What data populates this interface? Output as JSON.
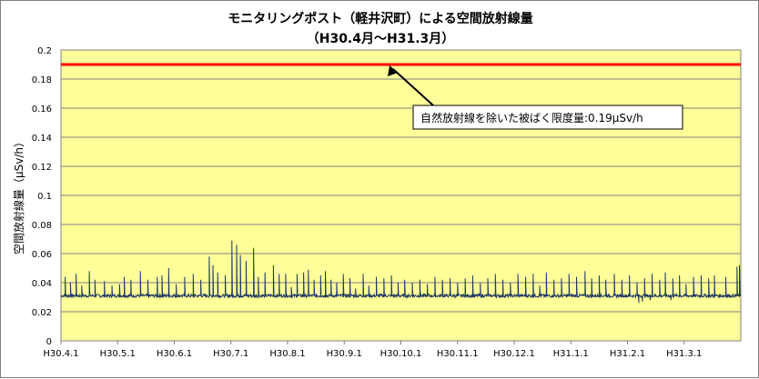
{
  "chart_data": {
    "type": "line",
    "title": "モニタリングポスト（軽井沢町）による空間放射線量",
    "subtitle": "（H30.4月～H31.3月）",
    "ylabel": "空間放射線量（μSv/h）",
    "xlabel": "",
    "ylim": [
      0,
      0.2
    ],
    "yticks": [
      "0",
      "0.02",
      "0.04",
      "0.06",
      "0.08",
      "0.1",
      "0.12",
      "0.14",
      "0.16",
      "0.18",
      "0.2"
    ],
    "xticks": [
      "H30.4.1",
      "H30.5.1",
      "H30.6.1",
      "H30.7.1",
      "H30.8.1",
      "H30.9.1",
      "H30.10.1",
      "H30.11.1",
      "H30.12.1",
      "H31.1.1",
      "H31.2.1",
      "H31.3.1"
    ],
    "reference_line": {
      "value": 0.19,
      "color": "#ff0000"
    },
    "annotation": "自然放射線を除いた被ばく限度量:0.19μSv/h",
    "series_color": "#1f3864",
    "plot_background": "#ffff99",
    "grid": true,
    "baseline": 0.031,
    "spikes": [
      [
        0.22,
        0.044
      ],
      [
        0.5,
        0.04
      ],
      [
        0.8,
        0.046
      ],
      [
        1.1,
        0.038
      ],
      [
        1.5,
        0.048
      ],
      [
        1.8,
        0.042
      ],
      [
        2.3,
        0.041
      ],
      [
        2.7,
        0.038
      ],
      [
        3.1,
        0.039
      ],
      [
        3.35,
        0.044
      ],
      [
        3.7,
        0.042
      ],
      [
        4.2,
        0.048
      ],
      [
        4.6,
        0.042
      ],
      [
        5.1,
        0.044
      ],
      [
        5.35,
        0.045
      ],
      [
        5.7,
        0.05
      ],
      [
        6.1,
        0.039
      ],
      [
        6.55,
        0.044
      ],
      [
        7.0,
        0.046
      ],
      [
        7.4,
        0.042
      ],
      [
        7.85,
        0.058
      ],
      [
        8.05,
        0.052
      ],
      [
        8.3,
        0.047
      ],
      [
        8.7,
        0.045
      ],
      [
        9.05,
        0.069
      ],
      [
        9.3,
        0.066
      ],
      [
        9.5,
        0.059
      ],
      [
        9.8,
        0.055
      ],
      [
        10.2,
        0.064
      ],
      [
        10.45,
        0.044
      ],
      [
        10.8,
        0.047
      ],
      [
        11.25,
        0.052
      ],
      [
        11.55,
        0.046
      ],
      [
        11.9,
        0.046
      ],
      [
        12.2,
        0.037
      ],
      [
        12.5,
        0.046
      ],
      [
        12.85,
        0.047
      ],
      [
        13.1,
        0.049
      ],
      [
        13.4,
        0.042
      ],
      [
        13.75,
        0.045
      ],
      [
        14.0,
        0.048
      ],
      [
        14.3,
        0.042
      ],
      [
        14.6,
        0.04
      ],
      [
        14.95,
        0.046
      ],
      [
        15.3,
        0.043
      ],
      [
        15.6,
        0.036
      ],
      [
        16.0,
        0.046
      ],
      [
        16.3,
        0.038
      ],
      [
        16.7,
        0.044
      ],
      [
        17.1,
        0.043
      ],
      [
        17.5,
        0.045
      ],
      [
        17.85,
        0.04
      ],
      [
        18.2,
        0.042
      ],
      [
        18.6,
        0.04
      ],
      [
        19.0,
        0.042
      ],
      [
        19.4,
        0.039
      ],
      [
        19.8,
        0.044
      ],
      [
        20.2,
        0.042
      ],
      [
        20.6,
        0.043
      ],
      [
        21.0,
        0.04
      ],
      [
        21.4,
        0.043
      ],
      [
        21.8,
        0.045
      ],
      [
        22.2,
        0.04
      ],
      [
        22.6,
        0.043
      ],
      [
        23.0,
        0.046
      ],
      [
        23.4,
        0.042
      ],
      [
        23.8,
        0.04
      ],
      [
        24.2,
        0.046
      ],
      [
        24.6,
        0.044
      ],
      [
        25.0,
        0.046
      ],
      [
        25.35,
        0.038
      ],
      [
        25.7,
        0.047
      ],
      [
        26.1,
        0.042
      ],
      [
        26.5,
        0.043
      ],
      [
        26.9,
        0.046
      ],
      [
        27.3,
        0.044
      ],
      [
        27.75,
        0.048
      ],
      [
        28.1,
        0.043
      ],
      [
        28.5,
        0.045
      ],
      [
        28.85,
        0.042
      ],
      [
        29.3,
        0.046
      ],
      [
        29.7,
        0.042
      ],
      [
        30.1,
        0.045
      ],
      [
        30.5,
        0.04
      ],
      [
        30.9,
        0.043
      ],
      [
        31.3,
        0.046
      ],
      [
        31.7,
        0.042
      ],
      [
        32.0,
        0.047
      ],
      [
        32.4,
        0.043
      ],
      [
        32.75,
        0.045
      ],
      [
        33.1,
        0.039
      ],
      [
        33.5,
        0.044
      ],
      [
        33.9,
        0.045
      ],
      [
        34.3,
        0.043
      ],
      [
        34.6,
        0.045
      ],
      [
        35.2,
        0.044
      ],
      [
        35.8,
        0.051
      ],
      [
        35.93,
        0.052
      ]
    ],
    "dips": [
      [
        30.6,
        0.026
      ],
      [
        30.8,
        0.027
      ],
      [
        31.2,
        0.028
      ],
      [
        32.3,
        0.028
      ]
    ]
  }
}
